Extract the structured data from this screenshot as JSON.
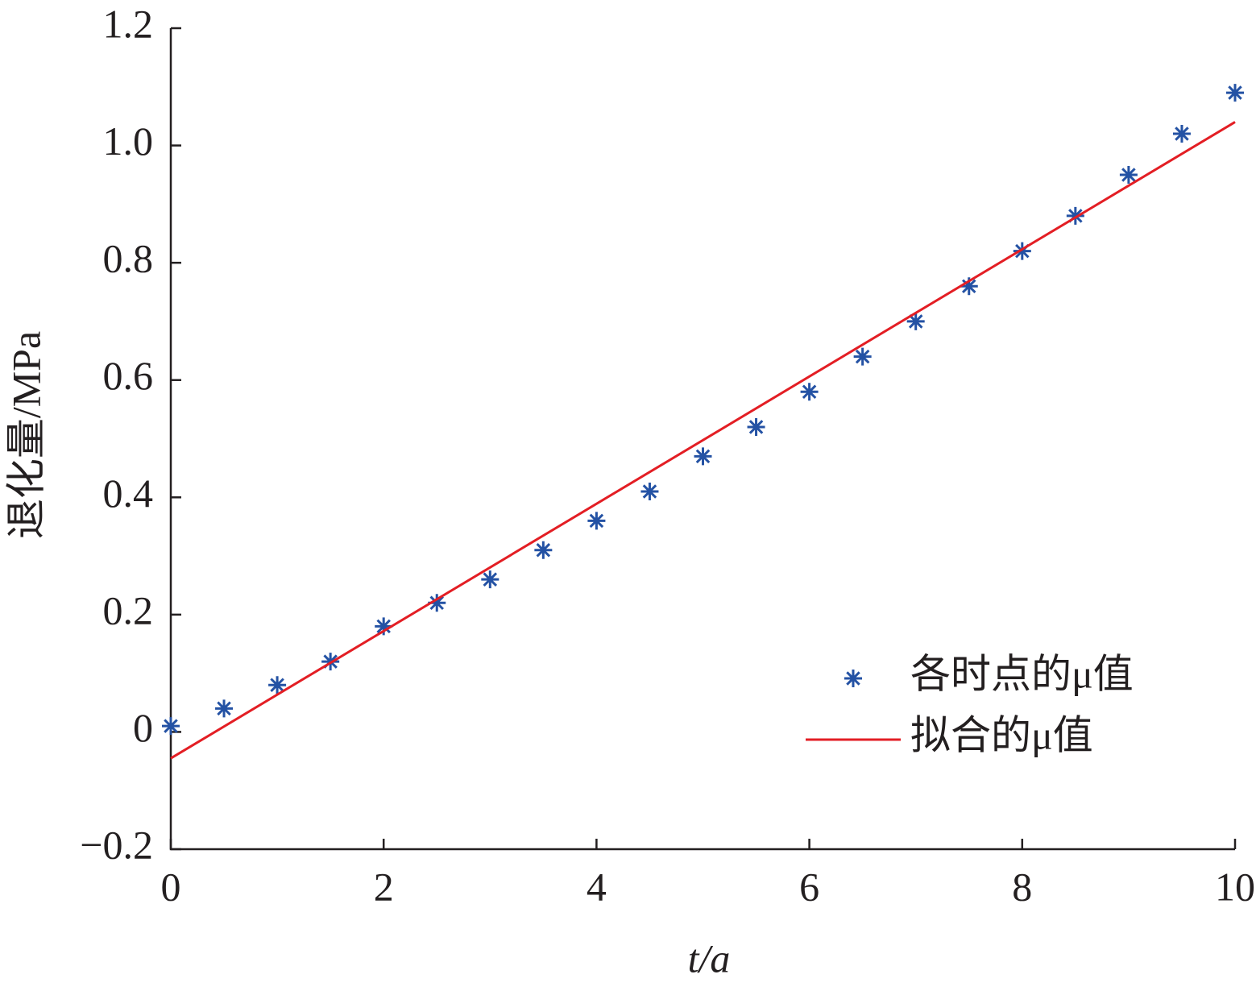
{
  "chart_data": {
    "type": "scatter",
    "x_label": "t/a",
    "y_label": "退化量/MPa",
    "xlim": [
      0,
      10
    ],
    "xticks": [
      0,
      2,
      4,
      6,
      8,
      10
    ],
    "ylim": [
      -0.2,
      1.2
    ],
    "yticks": [
      {
        "value": -0.2,
        "label": "−0.2"
      },
      0,
      0.2,
      0.4,
      0.6,
      0.8,
      {
        "value": 1.0,
        "label": "1.0"
      },
      1.2
    ],
    "legend": "lower right",
    "series": [
      {
        "name": "各时点的μ值",
        "type": "scatter",
        "marker": "*",
        "color": "#2452a4",
        "x": [
          0,
          0.5,
          1,
          1.5,
          2,
          2.5,
          3,
          3.5,
          4,
          4.5,
          5,
          5.5,
          6,
          6.5,
          7,
          7.5,
          8,
          8.5,
          9,
          9.5,
          10
        ],
        "values": [
          0.01,
          0.04,
          0.08,
          0.12,
          0.18,
          0.22,
          0.26,
          0.31,
          0.36,
          0.41,
          0.47,
          0.52,
          0.58,
          0.64,
          0.7,
          0.76,
          0.82,
          0.88,
          0.95,
          1.02,
          1.09
        ]
      },
      {
        "name": "拟合的μ值",
        "type": "line",
        "color": "#e31e24",
        "x": [
          0,
          10
        ],
        "values": [
          -0.045,
          1.04
        ]
      }
    ]
  }
}
